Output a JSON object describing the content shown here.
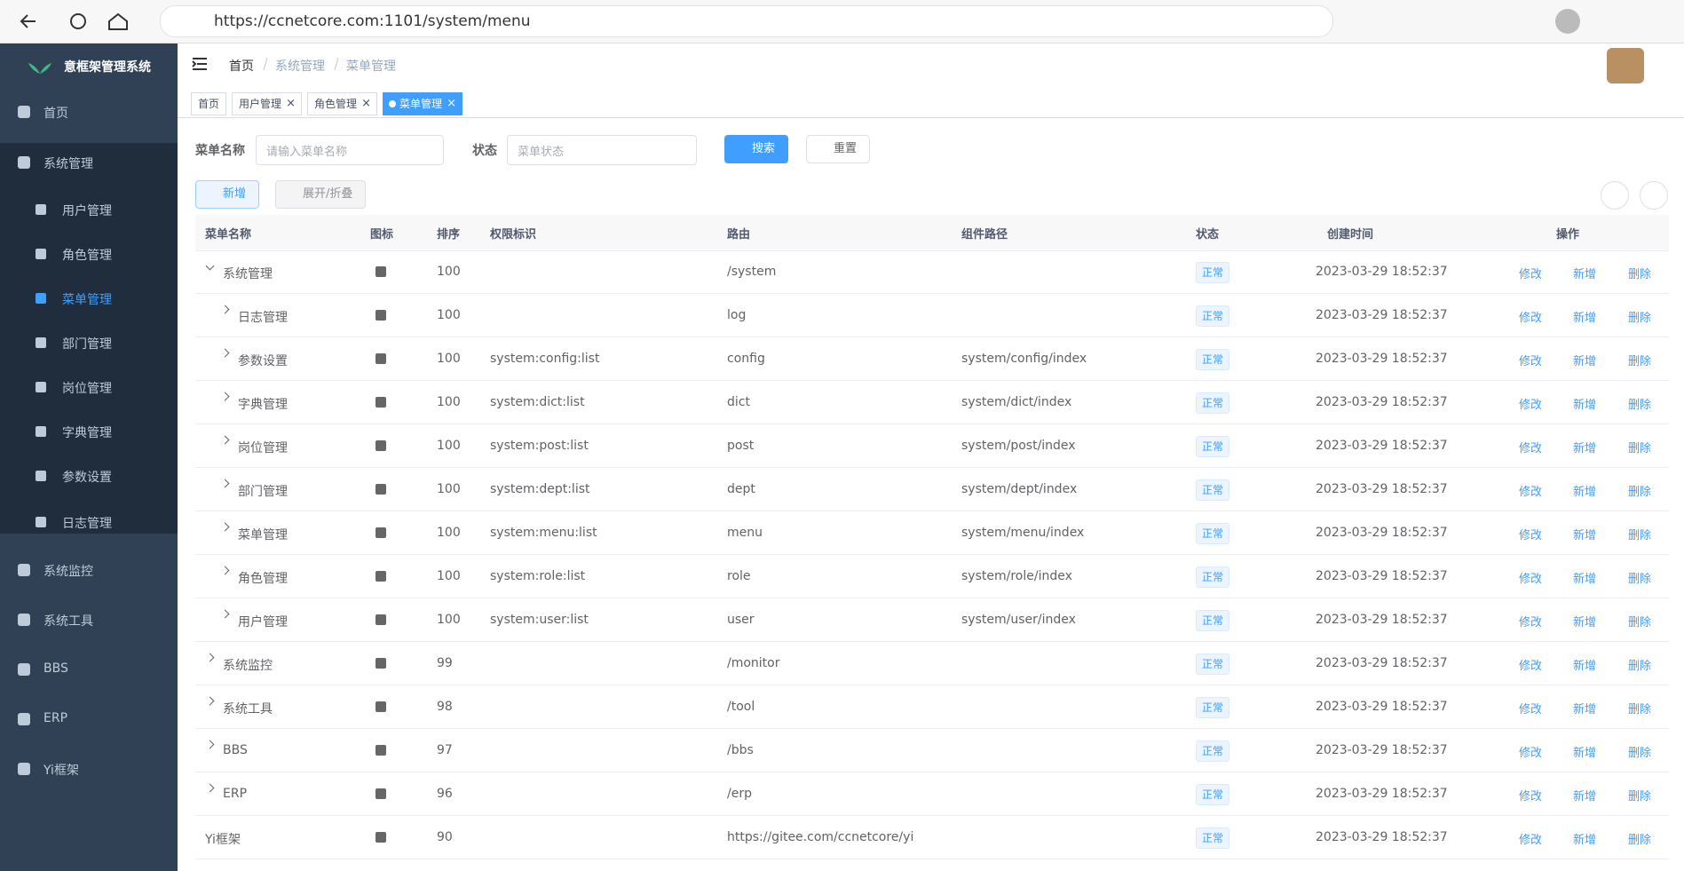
{
  "browser": {
    "url": "https://ccnetcore.com:1101/system/menu"
  },
  "sidebar": {
    "title": "意框架管理系统",
    "items": [
      {
        "label": "首页"
      },
      {
        "label": "系统管理",
        "children": [
          {
            "label": "用户管理"
          },
          {
            "label": "角色管理"
          },
          {
            "label": "菜单管理"
          },
          {
            "label": "部门管理"
          },
          {
            "label": "岗位管理"
          },
          {
            "label": "字典管理"
          },
          {
            "label": "参数设置"
          },
          {
            "label": "日志管理"
          }
        ]
      },
      {
        "label": "系统监控"
      },
      {
        "label": "系统工具"
      },
      {
        "label": "BBS"
      },
      {
        "label": "ERP"
      },
      {
        "label": "Yi框架"
      }
    ]
  },
  "header": {
    "breadcrumb": [
      "首页",
      "系统管理",
      "菜单管理"
    ]
  },
  "tabs": [
    "首页",
    "用户管理",
    "角色管理",
    "菜单管理"
  ],
  "search": {
    "name_label": "菜单名称",
    "name_placeholder": "请输入菜单名称",
    "status_label": "状态",
    "status_placeholder": "菜单状态",
    "search_button": "搜索",
    "reset_button": "重置"
  },
  "toolbar": {
    "add_button": "新增",
    "expand_button": "展开/折叠"
  },
  "table": {
    "columns": [
      "菜单名称",
      "图标",
      "排序",
      "权限标识",
      "路由",
      "组件路径",
      "状态",
      "创建时间",
      "操作"
    ],
    "actions": [
      "修改",
      "新增",
      "删除"
    ],
    "rows": [
      {
        "name": "系统管理",
        "sort": 100,
        "route": "/system",
        "status": "正常",
        "created": "2023-03-29 18:52:37",
        "children": [
          {
            "name": "日志管理",
            "sort": 100,
            "route": "log",
            "status": "正常",
            "created": "2023-03-29 18:52:37"
          },
          {
            "name": "参数设置",
            "sort": 100,
            "perm": "system:config:list",
            "route": "config",
            "component": "system/config/index",
            "status": "正常",
            "created": "2023-03-29 18:52:37"
          },
          {
            "name": "字典管理",
            "sort": 100,
            "perm": "system:dict:list",
            "route": "dict",
            "component": "system/dict/index",
            "status": "正常",
            "created": "2023-03-29 18:52:37"
          },
          {
            "name": "岗位管理",
            "sort": 100,
            "perm": "system:post:list",
            "route": "post",
            "component": "system/post/index",
            "status": "正常",
            "created": "2023-03-29 18:52:37"
          },
          {
            "name": "部门管理",
            "sort": 100,
            "perm": "system:dept:list",
            "route": "dept",
            "component": "system/dept/index",
            "status": "正常",
            "created": "2023-03-29 18:52:37"
          },
          {
            "name": "菜单管理",
            "sort": 100,
            "perm": "system:menu:list",
            "route": "menu",
            "component": "system/menu/index",
            "status": "正常",
            "created": "2023-03-29 18:52:37"
          },
          {
            "name": "角色管理",
            "sort": 100,
            "perm": "system:role:list",
            "route": "role",
            "component": "system/role/index",
            "status": "正常",
            "created": "2023-03-29 18:52:37"
          },
          {
            "name": "用户管理",
            "sort": 100,
            "perm": "system:user:list",
            "route": "user",
            "component": "system/user/index",
            "status": "正常",
            "created": "2023-03-29 18:52:37"
          }
        ]
      },
      {
        "name": "系统监控",
        "sort": 99,
        "route": "/monitor",
        "status": "正常",
        "created": "2023-03-29 18:52:37"
      },
      {
        "name": "系统工具",
        "sort": 98,
        "route": "/tool",
        "status": "正常",
        "created": "2023-03-29 18:52:37"
      },
      {
        "name": "BBS",
        "sort": 97,
        "route": "/bbs",
        "status": "正常",
        "created": "2023-03-29 18:52:37"
      },
      {
        "name": "ERP",
        "sort": 96,
        "route": "/erp",
        "status": "正常",
        "created": "2023-03-29 18:52:37"
      },
      {
        "name": "Yi框架",
        "sort": 90,
        "route": "https://gitee.com/ccnetcore/yi",
        "status": "正常",
        "created": "2023-03-29 18:52:37"
      }
    ]
  }
}
